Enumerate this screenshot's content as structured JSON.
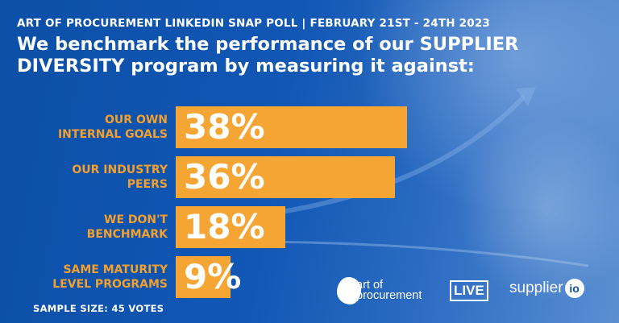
{
  "header": {
    "subtitle": "ART OF PROCUREMENT LINKEDIN SNAP POLL | FEBRUARY 21ST - 24TH 2023",
    "title": "We benchmark the performance of our SUPPLIER DIVERSITY program by measuring it against:"
  },
  "chart_data": {
    "type": "bar",
    "orientation": "horizontal",
    "title": "We benchmark the performance of our SUPPLIER DIVERSITY program by measuring it against:",
    "categories": [
      [
        "OUR OWN",
        "INTERNAL GOALS"
      ],
      [
        "OUR INDUSTRY",
        "PEERS"
      ],
      [
        "WE DON'T",
        "BENCHMARK"
      ],
      [
        "SAME MATURITY",
        "LEVEL PROGRAMS"
      ]
    ],
    "values": [
      38,
      36,
      18,
      9
    ],
    "value_labels": [
      "38%",
      "36%",
      "18%",
      "9%"
    ],
    "unit": "%",
    "xlim": [
      0,
      100
    ],
    "colors": {
      "bar": "#f5a533",
      "label": "#f5a02d",
      "value_text": "#ffffff"
    }
  },
  "footer": {
    "sample_size": "SAMPLE SIZE: 45 VOTES"
  },
  "logos": {
    "aop_line1": "art of",
    "aop_line2": "procurement",
    "aop_live": "LIVE",
    "supplier_word": "supplier",
    "supplier_suffix": "io"
  },
  "colors": {
    "background": "#0d52aa",
    "accent": "#f5a533"
  }
}
